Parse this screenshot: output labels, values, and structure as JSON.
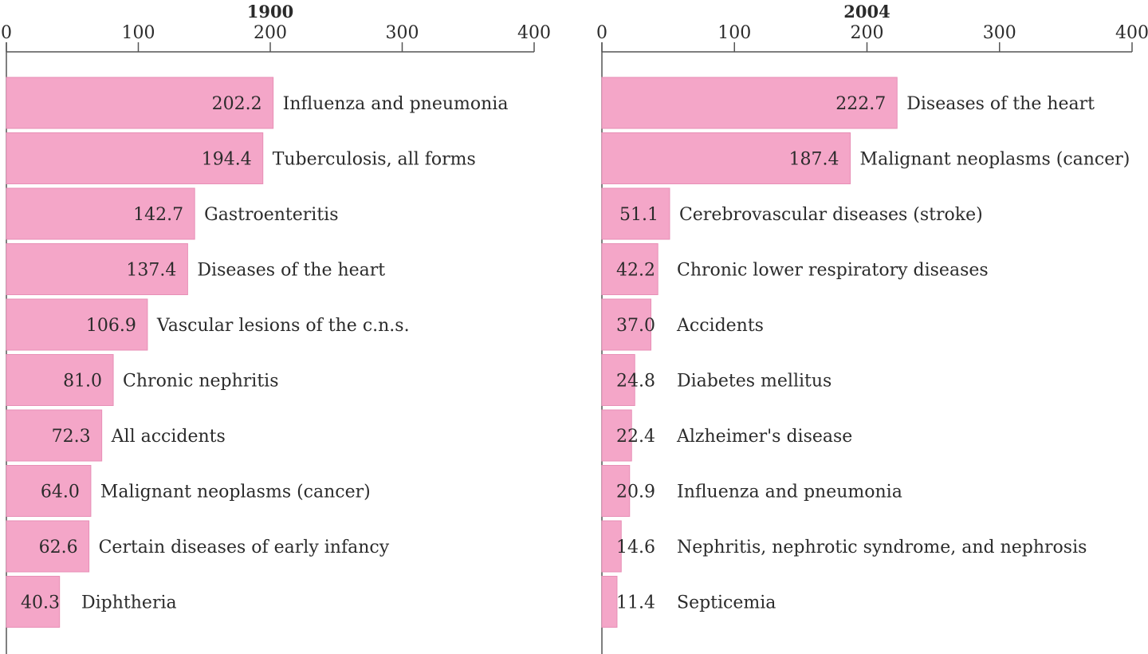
{
  "chart_data": [
    {
      "type": "bar",
      "orientation": "horizontal",
      "title": "1900",
      "xlim": [
        0,
        400
      ],
      "xticks": [
        0,
        100,
        200,
        300,
        400
      ],
      "xtick_labels": [
        "0",
        "100",
        "200",
        "300",
        "400"
      ],
      "categories": [
        "Influenza and pneumonia",
        "Tuberculosis, all forms",
        "Gastroenteritis",
        "Diseases of the heart",
        "Vascular lesions of the c.n.s.",
        "Chronic nephritis",
        "All accidents",
        "Malignant neoplasms (cancer)",
        "Certain diseases of early infancy",
        "Diphtheria"
      ],
      "values": [
        202.2,
        194.4,
        142.7,
        137.4,
        106.9,
        81.0,
        72.3,
        64.0,
        62.6,
        40.3
      ],
      "value_labels": [
        "202.2",
        "194.4",
        "142.7",
        "137.4",
        "106.9",
        "81.0",
        "72.3",
        "64.0",
        "62.6",
        "40.3"
      ],
      "xlabel": "",
      "ylabel": "",
      "grid": false,
      "axis_position": "top"
    },
    {
      "type": "bar",
      "orientation": "horizontal",
      "title": "2004",
      "xlim": [
        0,
        400
      ],
      "xticks": [
        0,
        100,
        200,
        300,
        400
      ],
      "xtick_labels": [
        "0",
        "100",
        "200",
        "300",
        "400"
      ],
      "categories": [
        "Diseases of the heart",
        "Malignant neoplasms (cancer)",
        "Cerebrovascular diseases (stroke)",
        "Chronic lower  respiratory diseases",
        "Accidents",
        "Diabetes mellitus",
        "Alzheimer's disease",
        "Influenza and pneumonia",
        "Nephritis, nephrotic syndrome, and nephrosis",
        "Septicemia"
      ],
      "values": [
        222.7,
        187.4,
        51.1,
        42.2,
        37.0,
        24.8,
        22.4,
        20.9,
        14.6,
        11.4
      ],
      "value_labels": [
        "222.7",
        "187.4",
        "51.1",
        "42.2",
        "37.0",
        "24.8",
        "22.4",
        "20.9",
        "14.6",
        "11.4"
      ],
      "xlabel": "",
      "ylabel": "",
      "grid": false,
      "axis_position": "top"
    }
  ],
  "colors": {
    "bar_fill": "#f4a6c8",
    "bar_stroke": "#e78fb6",
    "axis": "#555555",
    "text": "#2b2b2b"
  }
}
